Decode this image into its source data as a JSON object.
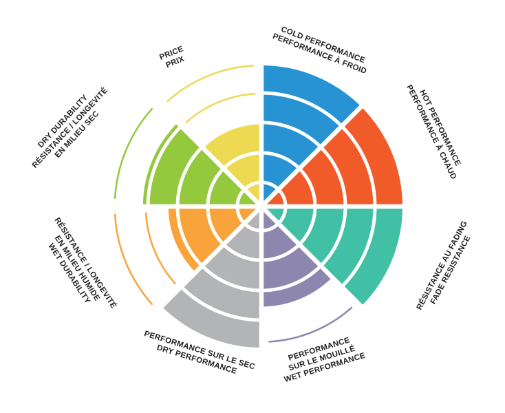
{
  "chart_data": {
    "type": "pie",
    "variant": "polar-performance-wheel",
    "description": "Bilingual (EN/FR) tire performance rating wheel with 8 colored 45-degree sectors filled to a rating level; thin colored arcs mark ring levels above the filled rating",
    "scale": {
      "min": 0,
      "max": 5,
      "grid_rings": 5
    },
    "background_color": "#ffffff",
    "grid_color": "#ffffff",
    "label_color": "#231f20",
    "sectors": [
      {
        "id": "cold-performance",
        "label_lines": [
          "COLD PERFORMANCE",
          "PERFORMANCE À FROID"
        ],
        "color": "#2793d2",
        "value": 5,
        "marker_arcs": []
      },
      {
        "id": "hot-performance",
        "label_lines": [
          "HOT PERFORMANCE",
          "PERFORMANCE À CHAUD"
        ],
        "color": "#f15b2a",
        "value": 5,
        "marker_arcs": []
      },
      {
        "id": "fade-resistance",
        "label_lines": [
          "RÉSISTANCE AU FADING",
          "FADE RESISTANCE"
        ],
        "color": "#41c0a5",
        "value": 5,
        "marker_arcs": []
      },
      {
        "id": "wet-performance",
        "label_lines": [
          "PERFORMANCE",
          "SUR LE MOUILLÉ",
          "WET PERFORMANCE"
        ],
        "color": "#8d87b0",
        "value": 3.55,
        "marker_arcs": [
          4.8
        ]
      },
      {
        "id": "dry-performance",
        "label_lines": [
          "PERFORMANCE SUR LE SEC",
          "DRY PERFORMANCE"
        ],
        "color": "#b3b4b6",
        "value": 5,
        "marker_arcs": []
      },
      {
        "id": "wet-durability",
        "label_lines": [
          "RÉSISTANCE / LONGEVITÉ",
          "EN MILIEU HUMIDE",
          "WET DURABILITY"
        ],
        "color": "#f9a33b",
        "value": 3.3,
        "marker_arcs": [
          4.1,
          5.2
        ]
      },
      {
        "id": "dry-durability",
        "label_lines": [
          "DRY DURABILITY",
          "RÉSISTANCE / LONGEVITÉ",
          "EN MILIEU SEC"
        ],
        "color": "#94c83d",
        "value": 4.2,
        "marker_arcs": [
          5.2
        ]
      },
      {
        "id": "price",
        "label_lines": [
          "PRICE",
          "PRIX"
        ],
        "color": "#eed952",
        "value": 3,
        "marker_arcs": [
          4,
          5
        ]
      }
    ]
  }
}
